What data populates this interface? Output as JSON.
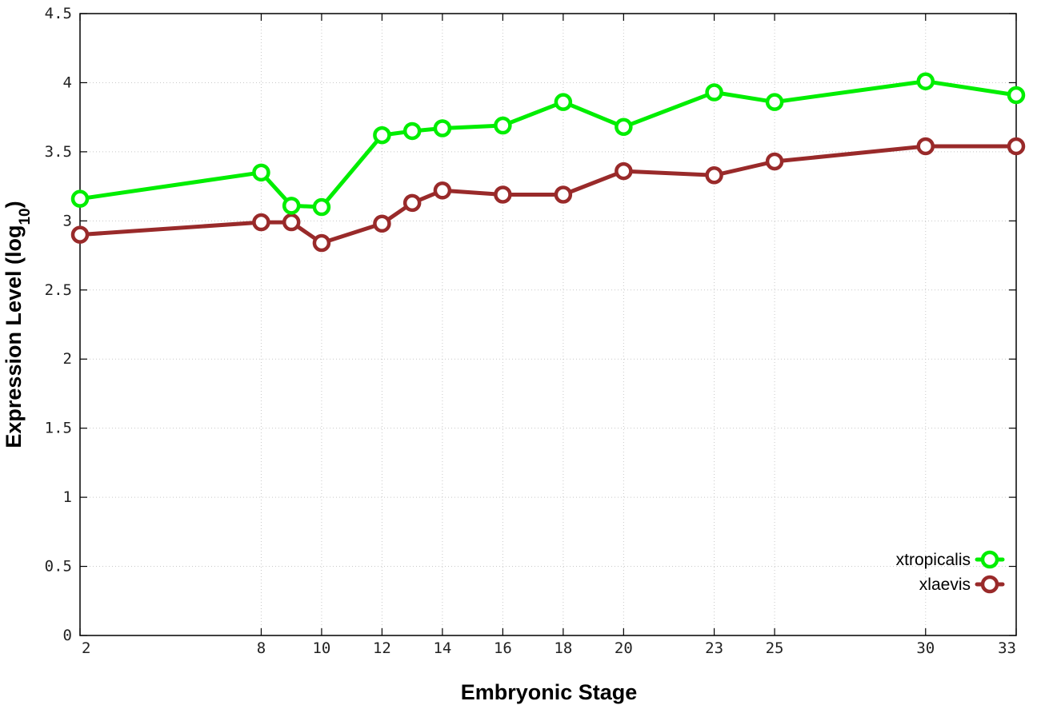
{
  "chart_data": {
    "type": "line",
    "xlabel": "Embryonic Stage",
    "ylabel_main": "Expression Level (log",
    "ylabel_sub": "10",
    "ylabel_close": ")",
    "x_ticks": [
      "2",
      "8",
      "10",
      "12",
      "14",
      "16",
      "18",
      "20",
      "23",
      "25",
      "30",
      "33"
    ],
    "y_ticks": [
      "0",
      "0.5",
      "1",
      "1.5",
      "2",
      "2.5",
      "3",
      "3.5",
      "4",
      "4.5"
    ],
    "x": [
      "2",
      "8",
      "9",
      "10",
      "12",
      "13",
      "14",
      "16",
      "18",
      "20",
      "23",
      "25",
      "30",
      "33"
    ],
    "ylim": [
      0,
      4.5
    ],
    "grid": true,
    "legend_position": "bottom-right",
    "series": [
      {
        "name": "xtropicalis",
        "color": "#00ee00",
        "values": [
          3.16,
          3.35,
          3.11,
          3.1,
          3.62,
          3.65,
          3.67,
          3.69,
          3.86,
          3.68,
          3.93,
          3.86,
          4.01,
          3.91
        ]
      },
      {
        "name": "xlaevis",
        "color": "#992a2a",
        "values": [
          2.9,
          2.99,
          2.99,
          2.84,
          2.98,
          3.13,
          3.22,
          3.19,
          3.19,
          3.36,
          3.33,
          3.43,
          3.54,
          3.54
        ]
      }
    ]
  }
}
